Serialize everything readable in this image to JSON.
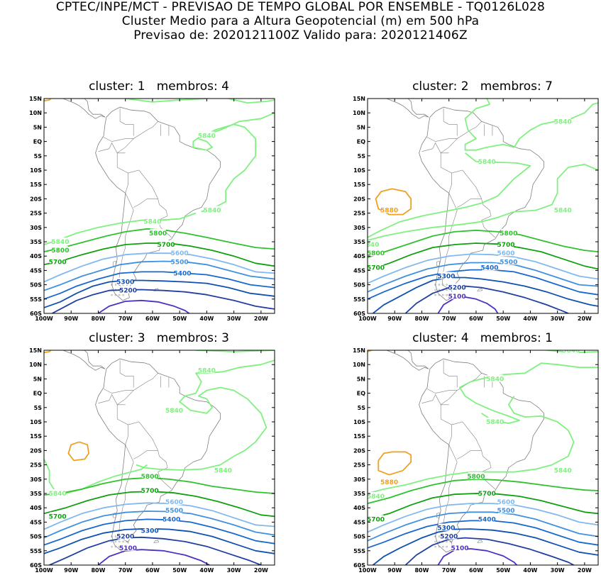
{
  "header": {
    "line1": "CPTEC/INPE/MCT - PREVISAO DE TEMPO GLOBAL POR ENSEMBLE - TQ0126L028",
    "line2": "Cluster Medio para a Altura Geopotencial (m) em 500 hPa",
    "line3": "Previsao de: 2020121100Z   Valido para: 2020121406Z"
  },
  "colors": {
    "c5880": "#f0a020",
    "c5840": "#80f080",
    "c5800": "#30c030",
    "c5700": "#10a010",
    "c5600": "#80b8f0",
    "c5500": "#4090e0",
    "c5400": "#1868d0",
    "c5300": "#1050b0",
    "c5200": "#2040a0",
    "c5100": "#5030c0",
    "coast": "#808080"
  },
  "chart_data": [
    {
      "type": "contour",
      "title": "cluster: 1   membros: 4",
      "xlabel": "",
      "ylabel": "",
      "xlim": [
        -100,
        -15
      ],
      "ylim": [
        -60,
        15
      ],
      "x_ticks": [
        "100W",
        "90W",
        "80W",
        "70W",
        "60W",
        "50W",
        "40W",
        "30W",
        "20W"
      ],
      "y_ticks": [
        "15N",
        "10N",
        "5N",
        "EQ",
        "5S",
        "10S",
        "15S",
        "20S",
        "25S",
        "30S",
        "35S",
        "40S",
        "45S",
        "50S",
        "55S",
        "60S"
      ],
      "contour_labels": [
        {
          "text": "5840",
          "lon": -60,
          "lat": -28
        },
        {
          "text": "5840",
          "lon": -38,
          "lat": -24
        },
        {
          "text": "5840",
          "lon": -94,
          "lat": -35
        },
        {
          "text": "5840",
          "lon": -40,
          "lat": 2
        },
        {
          "text": "5800",
          "lon": -58,
          "lat": -32
        },
        {
          "text": "5800",
          "lon": -94,
          "lat": -38
        },
        {
          "text": "5700",
          "lon": -55,
          "lat": -36
        },
        {
          "text": "5700",
          "lon": -95,
          "lat": -42
        },
        {
          "text": "5600",
          "lon": -50,
          "lat": -39
        },
        {
          "text": "5500",
          "lon": -50,
          "lat": -42
        },
        {
          "text": "5400",
          "lon": -49,
          "lat": -46
        },
        {
          "text": "5300",
          "lon": -70,
          "lat": -49
        },
        {
          "text": "5200",
          "lon": -69,
          "lat": -52
        }
      ]
    },
    {
      "type": "contour",
      "title": "cluster: 2   membros: 7",
      "xlabel": "",
      "ylabel": "",
      "xlim": [
        -100,
        -15
      ],
      "ylim": [
        -60,
        15
      ],
      "x_ticks": [
        "100W",
        "90W",
        "80W",
        "70W",
        "60W",
        "50W",
        "40W",
        "30W",
        "20W"
      ],
      "y_ticks": [
        "15N",
        "10N",
        "5N",
        "EQ",
        "5S",
        "10S",
        "15S",
        "20S",
        "25S",
        "30S",
        "35S",
        "40S",
        "45S",
        "50S",
        "55S",
        "60S"
      ],
      "contour_labels": [
        {
          "text": "5840",
          "lon": -28,
          "lat": 7
        },
        {
          "text": "5840",
          "lon": -56,
          "lat": -7
        },
        {
          "text": "5840",
          "lon": -28,
          "lat": -24
        },
        {
          "text": "5840",
          "lon": -99,
          "lat": -36
        },
        {
          "text": "5880",
          "lon": -92,
          "lat": -24
        },
        {
          "text": "5800",
          "lon": -48,
          "lat": -32
        },
        {
          "text": "5800",
          "lon": -97,
          "lat": -39
        },
        {
          "text": "5700",
          "lon": -49,
          "lat": -36
        },
        {
          "text": "5700",
          "lon": -97,
          "lat": -44
        },
        {
          "text": "5600",
          "lon": -49,
          "lat": -39
        },
        {
          "text": "5500",
          "lon": -48,
          "lat": -42
        },
        {
          "text": "5400",
          "lon": -55,
          "lat": -44
        },
        {
          "text": "5300",
          "lon": -71,
          "lat": -47
        },
        {
          "text": "5200",
          "lon": -67,
          "lat": -51
        },
        {
          "text": "5100",
          "lon": -67,
          "lat": -54
        }
      ]
    },
    {
      "type": "contour",
      "title": "cluster: 3   membros: 3",
      "xlabel": "",
      "ylabel": "",
      "xlim": [
        -100,
        -15
      ],
      "ylim": [
        -60,
        15
      ],
      "x_ticks": [
        "100W",
        "90W",
        "80W",
        "70W",
        "60W",
        "50W",
        "40W",
        "30W",
        "20W"
      ],
      "y_ticks": [
        "15N",
        "10N",
        "5N",
        "EQ",
        "5S",
        "10S",
        "15S",
        "20S",
        "25S",
        "30S",
        "35S",
        "40S",
        "45S",
        "50S",
        "55S",
        "60S"
      ],
      "contour_labels": [
        {
          "text": "5840",
          "lon": -40,
          "lat": 8
        },
        {
          "text": "5840",
          "lon": -52,
          "lat": -6
        },
        {
          "text": "5840",
          "lon": -34,
          "lat": -27
        },
        {
          "text": "5840",
          "lon": -95,
          "lat": -35
        },
        {
          "text": "5800",
          "lon": -61,
          "lat": -29
        },
        {
          "text": "5700",
          "lon": -61,
          "lat": -34
        },
        {
          "text": "5700",
          "lon": -95,
          "lat": -43
        },
        {
          "text": "5600",
          "lon": -52,
          "lat": -38
        },
        {
          "text": "5500",
          "lon": -52,
          "lat": -41
        },
        {
          "text": "5400",
          "lon": -53,
          "lat": -44
        },
        {
          "text": "5300",
          "lon": -61,
          "lat": -48
        },
        {
          "text": "5200",
          "lon": -70,
          "lat": -50
        },
        {
          "text": "5100",
          "lon": -69,
          "lat": -54
        }
      ]
    },
    {
      "type": "contour",
      "title": "cluster: 4   membros: 1",
      "xlabel": "",
      "ylabel": "",
      "xlim": [
        -100,
        -15
      ],
      "ylim": [
        -60,
        15
      ],
      "x_ticks": [
        "100W",
        "90W",
        "80W",
        "70W",
        "60W",
        "50W",
        "40W",
        "30W",
        "20W"
      ],
      "y_ticks": [
        "15N",
        "10N",
        "5N",
        "EQ",
        "5S",
        "10S",
        "15S",
        "20S",
        "25S",
        "30S",
        "35S",
        "40S",
        "45S",
        "50S",
        "55S",
        "60S"
      ],
      "contour_labels": [
        {
          "text": "5840",
          "lon": -25,
          "lat": 15
        },
        {
          "text": "5840",
          "lon": -53,
          "lat": 5
        },
        {
          "text": "5840",
          "lon": -53,
          "lat": -10
        },
        {
          "text": "5840",
          "lon": -28,
          "lat": -27
        },
        {
          "text": "5840",
          "lon": -97,
          "lat": -36
        },
        {
          "text": "5880",
          "lon": -92,
          "lat": -31
        },
        {
          "text": "5800",
          "lon": -60,
          "lat": -29
        },
        {
          "text": "5700",
          "lon": -56,
          "lat": -35
        },
        {
          "text": "5700",
          "lon": -97,
          "lat": -44
        },
        {
          "text": "5600",
          "lon": -49,
          "lat": -38
        },
        {
          "text": "5500",
          "lon": -49,
          "lat": -41
        },
        {
          "text": "5400",
          "lon": -56,
          "lat": -44
        },
        {
          "text": "5300",
          "lon": -71,
          "lat": -47
        },
        {
          "text": "5200",
          "lon": -70,
          "lat": -50
        },
        {
          "text": "5100",
          "lon": -66,
          "lat": -54
        }
      ]
    }
  ]
}
